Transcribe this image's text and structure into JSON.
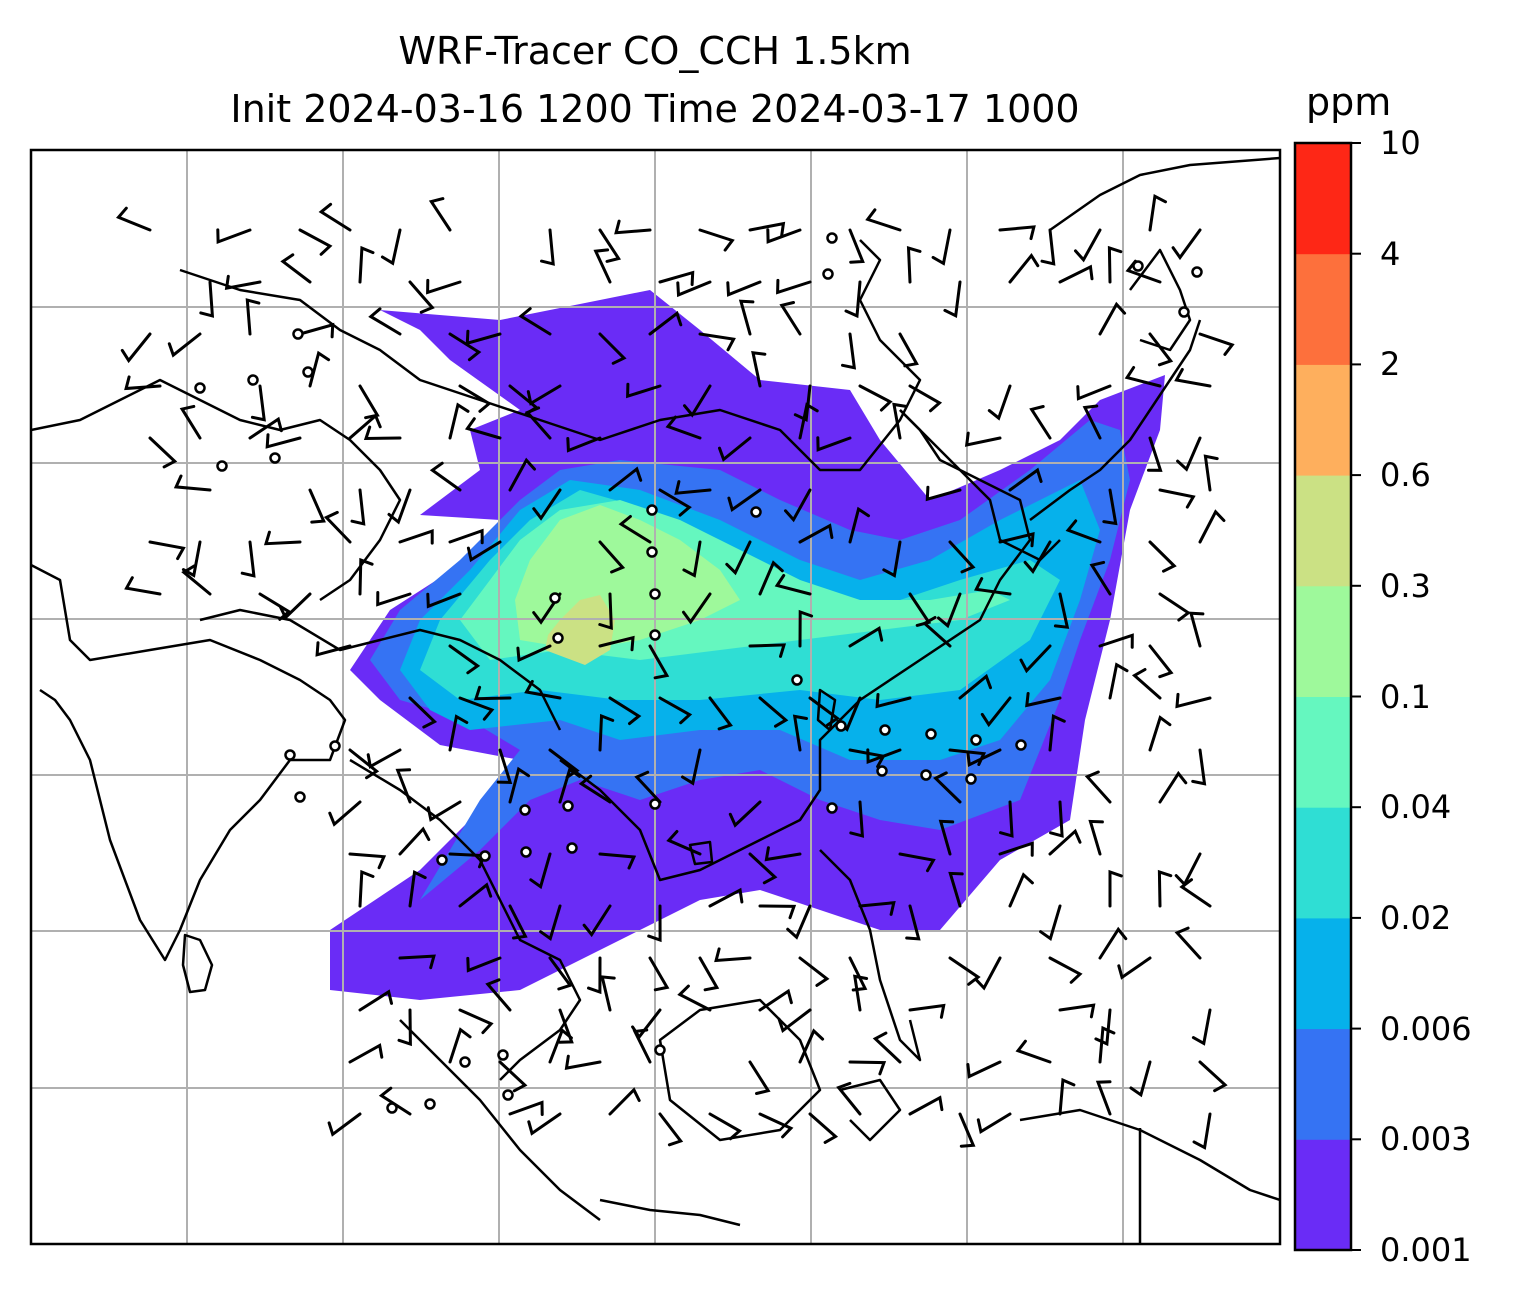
{
  "title": {
    "line1": "WRF-Tracer CO_CCH 1.5km",
    "line2": "Init 2024-03-16 1200 Time 2024-03-17 1000"
  },
  "colorbar": {
    "unit": "ppm",
    "levels": [
      "0.001",
      "0.003",
      "0.006",
      "0.02",
      "0.04",
      "0.1",
      "0.3",
      "0.6",
      "2",
      "4",
      "10"
    ],
    "colors": [
      "#6a2cf6",
      "#3573f3",
      "#06b1eb",
      "#2fded4",
      "#65f7bf",
      "#9ef99b",
      "#cbe184",
      "#feaf5d",
      "#fd703c",
      "#fe2716"
    ]
  },
  "map": {
    "gridlines": true,
    "gridline_color": "#b0b0b0",
    "coastline_color": "#000000",
    "calm_marker": "circle",
    "wind_symbol": "barb"
  }
}
